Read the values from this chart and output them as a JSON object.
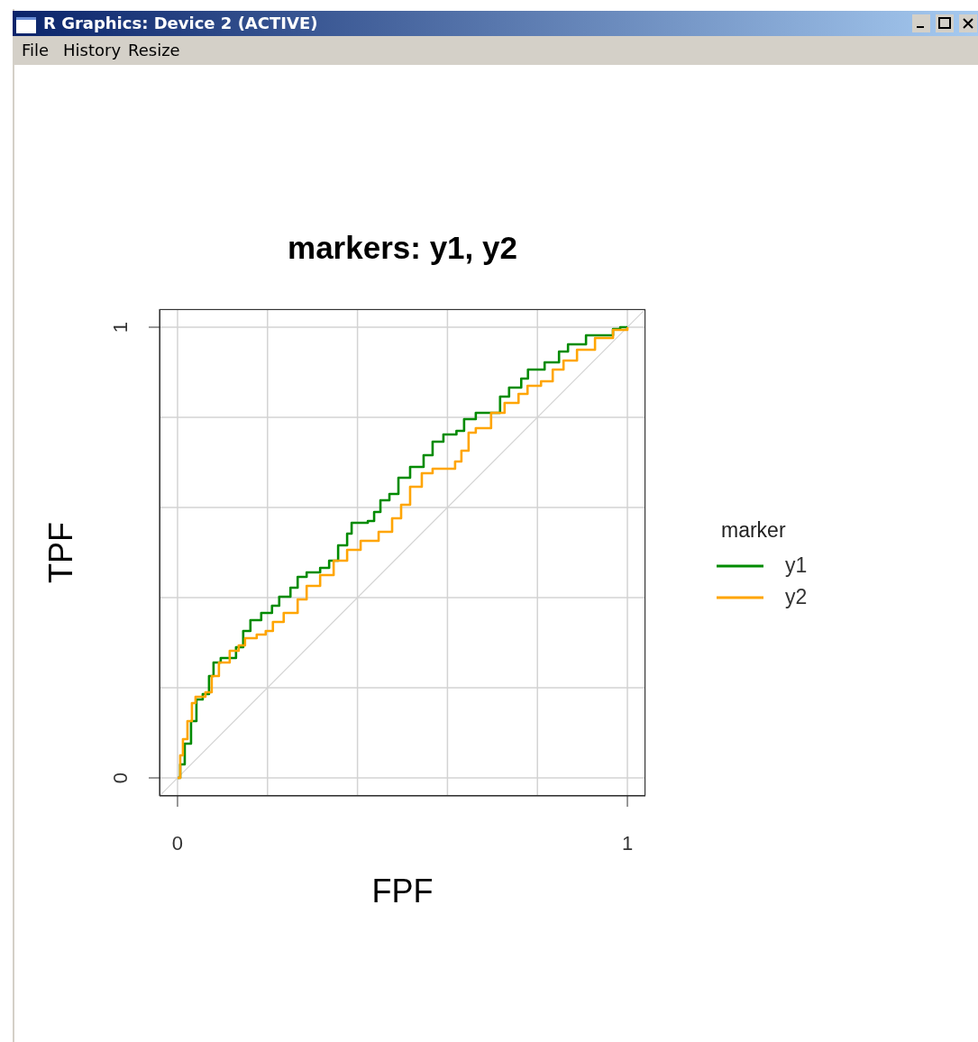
{
  "chart_data": {
    "type": "step",
    "title": "markers:  y1, y2",
    "xlabel": "FPF",
    "ylabel": "TPF",
    "legend_title": "marker",
    "legend": "right",
    "grid": true,
    "marker": "none",
    "line_style": "solid",
    "xlim": [
      -0.04,
      1.04
    ],
    "ylim": [
      -0.04,
      1.04
    ],
    "xticks": [
      0,
      {
        "value": 0.2,
        "label": null
      },
      {
        "value": 0.4,
        "label": null
      },
      {
        "value": 0.6,
        "label": null
      },
      {
        "value": 0.8,
        "label": null
      },
      1
    ],
    "yticks": [
      0,
      {
        "value": 0.2,
        "label": null
      },
      {
        "value": 0.4,
        "label": null
      },
      {
        "value": 0.6,
        "label": null
      },
      {
        "value": 0.8,
        "label": null
      },
      1
    ],
    "annotations": [
      "R Graphics: Device 2 (ACTIVE)",
      "File",
      "History",
      "Resize"
    ],
    "series": [
      {
        "type": "line",
        "color": "#d3d3d3",
        "x": [
          -0.04,
          1.04
        ],
        "values": [
          -0.04,
          1.04
        ]
      },
      {
        "name": "y1",
        "color": "#008b00",
        "x": [
          0,
          0.006,
          0.016,
          0.03,
          0.042,
          0.056,
          0.07,
          0.08,
          0.096,
          0.128,
          0.13,
          0.146,
          0.162,
          0.186,
          0.21,
          0.226,
          0.251,
          0.267,
          0.287,
          0.317,
          0.337,
          0.357,
          0.377,
          0.387,
          0.423,
          0.437,
          0.451,
          0.471,
          0.491,
          0.517,
          0.547,
          0.567,
          0.591,
          0.62,
          0.637,
          0.663,
          0.711,
          0.717,
          0.737,
          0.764,
          0.779,
          0.816,
          0.848,
          0.868,
          0.908,
          0.948,
          0.968,
          0.984,
          1
        ],
        "values": [
          0,
          0.03,
          0.076,
          0.126,
          0.174,
          0.186,
          0.226,
          0.256,
          0.266,
          0.266,
          0.29,
          0.326,
          0.35,
          0.366,
          0.382,
          0.402,
          0.422,
          0.446,
          0.456,
          0.466,
          0.482,
          0.516,
          0.542,
          0.566,
          0.57,
          0.59,
          0.616,
          0.63,
          0.666,
          0.69,
          0.716,
          0.746,
          0.762,
          0.77,
          0.796,
          0.81,
          0.81,
          0.846,
          0.866,
          0.886,
          0.906,
          0.922,
          0.946,
          0.962,
          0.982,
          0.982,
          0.996,
          1,
          1
        ]
      },
      {
        "name": "y2",
        "color": "#ffa500",
        "x": [
          0,
          0.006,
          0.012,
          0.022,
          0.032,
          0.04,
          0.062,
          0.076,
          0.092,
          0.116,
          0.136,
          0.15,
          0.176,
          0.196,
          0.212,
          0.236,
          0.267,
          0.287,
          0.317,
          0.347,
          0.377,
          0.407,
          0.447,
          0.477,
          0.497,
          0.517,
          0.543,
          0.567,
          0.617,
          0.631,
          0.647,
          0.663,
          0.697,
          0.727,
          0.758,
          0.778,
          0.808,
          0.834,
          0.858,
          0.888,
          0.928,
          0.968,
          1
        ],
        "values": [
          0,
          0.05,
          0.086,
          0.126,
          0.166,
          0.18,
          0.19,
          0.226,
          0.256,
          0.282,
          0.294,
          0.31,
          0.318,
          0.326,
          0.346,
          0.366,
          0.396,
          0.426,
          0.45,
          0.482,
          0.506,
          0.526,
          0.546,
          0.576,
          0.606,
          0.646,
          0.676,
          0.686,
          0.702,
          0.726,
          0.766,
          0.776,
          0.81,
          0.832,
          0.852,
          0.87,
          0.88,
          0.906,
          0.926,
          0.95,
          0.976,
          0.994,
          1
        ]
      }
    ]
  }
}
